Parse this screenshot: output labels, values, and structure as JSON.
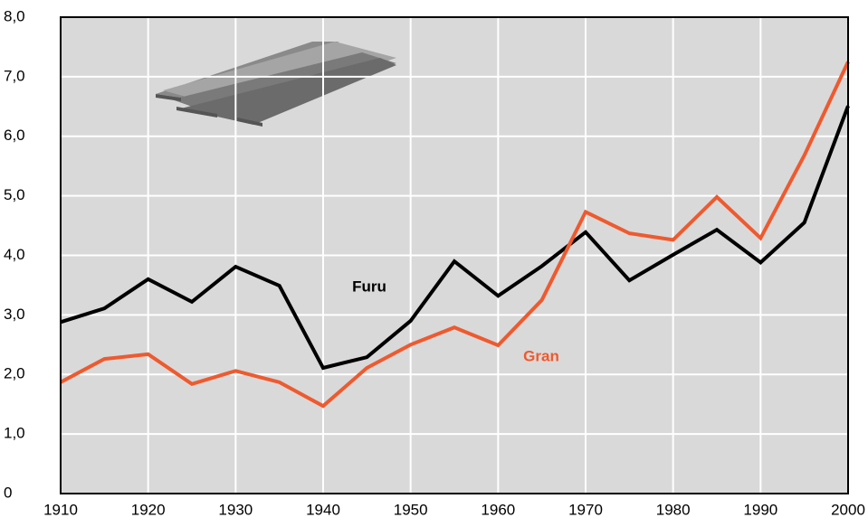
{
  "chart_data": {
    "type": "line",
    "x": [
      1910,
      1915,
      1920,
      1925,
      1930,
      1935,
      1940,
      1945,
      1950,
      1955,
      1960,
      1965,
      1970,
      1975,
      1980,
      1985,
      1990,
      1995,
      2000
    ],
    "series": [
      {
        "name": "Furu",
        "color": "#000000",
        "values": [
          2.88,
          3.11,
          3.6,
          3.22,
          3.81,
          3.49,
          2.11,
          2.29,
          2.9,
          3.9,
          3.32,
          3.82,
          4.39,
          3.58,
          4.01,
          4.43,
          3.88,
          4.55,
          6.51
        ]
      },
      {
        "name": "Gran",
        "color": "#ee5a2f",
        "values": [
          1.87,
          2.26,
          2.34,
          1.84,
          2.06,
          1.87,
          1.47,
          2.11,
          2.5,
          2.79,
          2.49,
          3.25,
          4.73,
          4.37,
          4.26,
          4.98,
          4.29,
          5.68,
          7.25
        ]
      }
    ],
    "xlim": [
      1910,
      2000
    ],
    "xticks": [
      1910,
      1920,
      1930,
      1940,
      1950,
      1960,
      1970,
      1980,
      1990,
      2000
    ],
    "ylim": [
      0,
      8
    ],
    "yticks": [
      0,
      {
        "value": 1,
        "label": "1,0"
      },
      {
        "value": 2,
        "label": "2,0"
      },
      {
        "value": 3,
        "label": "3,0"
      },
      {
        "value": 4,
        "label": "4,0"
      },
      {
        "value": 5,
        "label": "5,0"
      },
      {
        "value": 6,
        "label": "6,0"
      },
      {
        "value": 7,
        "label": "7,0"
      },
      {
        "value": 8,
        "label": "8,0"
      }
    ],
    "grid": true
  }
}
